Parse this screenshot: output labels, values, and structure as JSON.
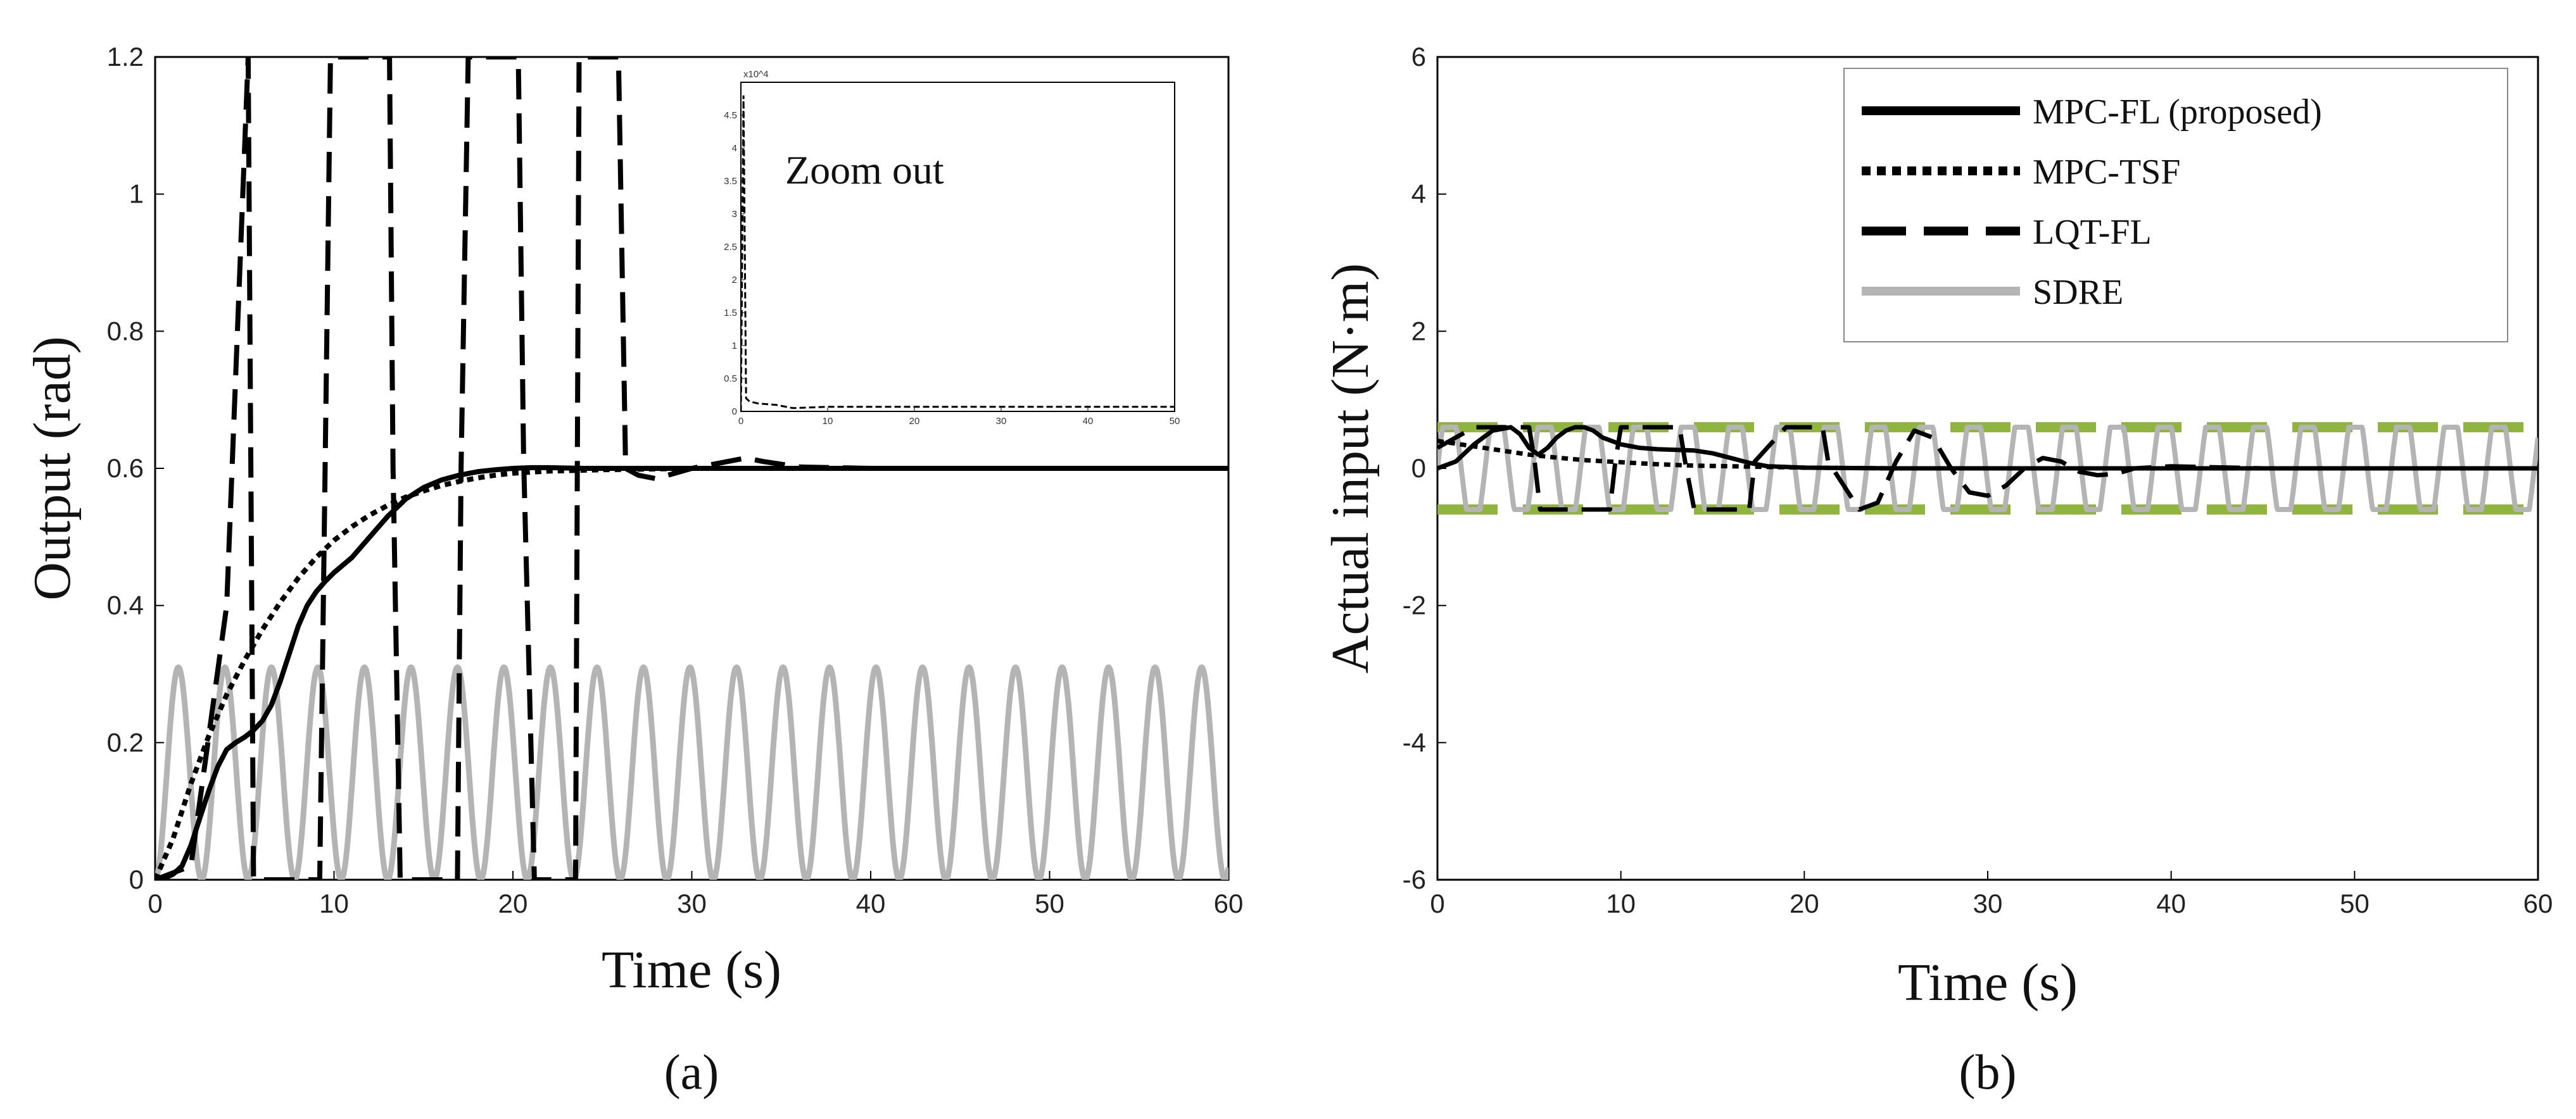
{
  "chart_data": [
    {
      "type": "line",
      "panel_label": "(a)",
      "xlabel": "Time (s)",
      "ylabel": "Output (rad)",
      "xlim": [
        0,
        60
      ],
      "ylim": [
        0,
        1.2
      ],
      "xticks": [
        0,
        10,
        20,
        30,
        40,
        50,
        60
      ],
      "yticks": [
        0,
        0.2,
        0.4,
        0.6,
        0.8,
        1.0,
        1.2
      ],
      "xtick_labels": [
        "0",
        "10",
        "20",
        "30",
        "40",
        "50",
        "60"
      ],
      "ytick_labels": [
        "0",
        "0.2",
        "0.4",
        "0.6",
        "0.8",
        "1",
        "1.2"
      ],
      "series": [
        {
          "name": "MPC-FL (proposed)",
          "style": "solid",
          "color": "#000000",
          "x": [
            0,
            0.5,
            1,
            1.5,
            2,
            2.5,
            3,
            3.5,
            4,
            4.5,
            5,
            5.5,
            6,
            6.5,
            7,
            7.5,
            8,
            8.5,
            9,
            9.5,
            10,
            11,
            12,
            13,
            14,
            15,
            16,
            17,
            18,
            19,
            20,
            21,
            22,
            24,
            27,
            30,
            40,
            50,
            60
          ],
          "y": [
            0,
            0.002,
            0.008,
            0.02,
            0.05,
            0.09,
            0.13,
            0.165,
            0.19,
            0.2,
            0.208,
            0.218,
            0.232,
            0.255,
            0.29,
            0.33,
            0.37,
            0.4,
            0.42,
            0.435,
            0.448,
            0.47,
            0.5,
            0.53,
            0.555,
            0.572,
            0.583,
            0.59,
            0.595,
            0.598,
            0.6,
            0.601,
            0.601,
            0.6,
            0.6,
            0.6,
            0.6,
            0.6,
            0.6
          ]
        },
        {
          "name": "MPC-TSF",
          "style": "dotted",
          "color": "#000000",
          "x": [
            0,
            1,
            2,
            3,
            4,
            5,
            6,
            7,
            8,
            9,
            10,
            11,
            12,
            13,
            14,
            15,
            16,
            17,
            18,
            19,
            20,
            22,
            25,
            30,
            40,
            50,
            60
          ],
          "y": [
            0,
            0.06,
            0.14,
            0.21,
            0.27,
            0.32,
            0.365,
            0.405,
            0.44,
            0.47,
            0.495,
            0.515,
            0.532,
            0.546,
            0.558,
            0.567,
            0.575,
            0.581,
            0.586,
            0.59,
            0.593,
            0.596,
            0.598,
            0.6,
            0.6,
            0.6,
            0.6
          ]
        },
        {
          "name": "LQT-FL",
          "style": "dashed",
          "color": "#000000",
          "x": [
            0,
            2,
            4,
            5.2,
            5.5,
            9.2,
            9.5,
            9.8,
            13.1,
            13.3,
            13.7,
            16.9,
            17.1,
            17.5,
            20.3,
            20.6,
            21.2,
            23.5,
            23.7,
            25.9,
            26.3,
            27,
            28,
            30,
            32,
            33,
            34,
            36,
            40,
            50,
            60
          ],
          "y": [
            0,
            0.02,
            0.4,
            1.2,
            0,
            0,
            0.6,
            1.2,
            1.2,
            0.6,
            0,
            0,
            0.6,
            1.2,
            1.2,
            0.61,
            0,
            0,
            1.2,
            1.2,
            0.6,
            0.59,
            0.585,
            0.6,
            0.61,
            0.615,
            0.61,
            0.602,
            0.6,
            0.6,
            0.6
          ]
        },
        {
          "name": "SDRE",
          "style": "solid",
          "color": "#b4b4b4",
          "form": "sinusoid",
          "amplitude": 0.155,
          "offset": 0.155,
          "period_s": 2.6,
          "x": [
            0,
            60
          ]
        }
      ],
      "inset": {
        "label": "Zoom out",
        "multiplier": "x10^4",
        "xlim": [
          0,
          50
        ],
        "ylim": [
          0,
          5
        ],
        "xticks": [
          0,
          10,
          20,
          30,
          40,
          50
        ],
        "yticks": [
          0,
          0.5,
          1,
          1.5,
          2,
          2.5,
          3,
          3.5,
          4,
          4.5
        ],
        "xtick_labels": [
          "0",
          "10",
          "20",
          "30",
          "40",
          "50"
        ],
        "ytick_labels": [
          "0",
          "0.5",
          "1",
          "1.5",
          "2",
          "2.5",
          "3",
          "3.5",
          "4",
          "4.5"
        ],
        "series": {
          "name": "LQT-FL",
          "style": "dashed",
          "x": [
            0,
            0.3,
            0.6,
            1,
            2,
            4,
            6,
            8,
            10,
            50
          ],
          "y": [
            0,
            4.8,
            0.2,
            0.15,
            0.12,
            0.1,
            0.05,
            0.06,
            0.07,
            0.07
          ]
        }
      }
    },
    {
      "type": "line",
      "panel_label": "(b)",
      "xlabel": "Time (s)",
      "ylabel": "Actual input (N·m)",
      "xlim": [
        0,
        60
      ],
      "ylim": [
        -6,
        6
      ],
      "xticks": [
        0,
        10,
        20,
        30,
        40,
        50,
        60
      ],
      "yticks": [
        -6,
        -4,
        -2,
        0,
        2,
        4,
        6
      ],
      "xtick_labels": [
        "0",
        "10",
        "20",
        "30",
        "40",
        "50",
        "60"
      ],
      "ytick_labels": [
        "-6",
        "-4",
        "-2",
        "0",
        "2",
        "4",
        "6"
      ],
      "constraint_lines": {
        "values": [
          0.6,
          -0.6
        ],
        "color": "#8fb53f",
        "style": "dashed"
      },
      "legend": {
        "position": "top-right",
        "entries": [
          "MPC-FL (proposed)",
          "MPC-TSF",
          "LQT-FL",
          "SDRE"
        ]
      },
      "series": [
        {
          "name": "MPC-FL (proposed)",
          "style": "solid",
          "color": "#000000",
          "x": [
            0,
            1,
            2,
            3,
            4,
            4.5,
            5,
            5.5,
            6,
            6.5,
            7,
            7.5,
            8,
            8.5,
            9,
            10,
            11,
            12,
            13,
            14,
            15,
            16,
            17,
            18,
            20,
            25,
            30,
            40,
            50,
            60
          ],
          "y": [
            0,
            0.1,
            0.35,
            0.55,
            0.6,
            0.5,
            0.3,
            0.2,
            0.3,
            0.45,
            0.55,
            0.6,
            0.6,
            0.55,
            0.45,
            0.35,
            0.3,
            0.28,
            0.27,
            0.26,
            0.22,
            0.15,
            0.08,
            0.03,
            0.01,
            0,
            0,
            0,
            0,
            0
          ]
        },
        {
          "name": "MPC-TSF",
          "style": "dotted",
          "color": "#000000",
          "x": [
            0,
            1,
            2,
            3,
            4,
            5,
            6,
            8,
            10,
            12,
            14,
            16,
            18,
            20,
            25,
            30,
            40,
            50,
            60
          ],
          "y": [
            0.4,
            0.36,
            0.32,
            0.28,
            0.24,
            0.2,
            0.17,
            0.12,
            0.09,
            0.06,
            0.04,
            0.03,
            0.02,
            0.01,
            0,
            0,
            0,
            0,
            0
          ]
        },
        {
          "name": "LQT-FL",
          "style": "dashed",
          "color": "#000000",
          "x": [
            0,
            1,
            2,
            3,
            4,
            5,
            5.3,
            5.6,
            6.5,
            8,
            9.4,
            9.7,
            10,
            12,
            13.2,
            13.5,
            14,
            16,
            17,
            17.3,
            19,
            21,
            21.3,
            23,
            24,
            25,
            26,
            27,
            28,
            29,
            30,
            31,
            32,
            33,
            34,
            35,
            36,
            37,
            38,
            40,
            45,
            50,
            60
          ],
          "y": [
            0.3,
            0.45,
            0.6,
            0.6,
            0.6,
            0.6,
            0.1,
            -0.6,
            -0.6,
            -0.6,
            -0.6,
            0.1,
            0.6,
            0.6,
            0.6,
            0.1,
            -0.6,
            -0.6,
            -0.6,
            0.1,
            0.6,
            0.6,
            0.1,
            -0.6,
            -0.5,
            0.1,
            0.55,
            0.45,
            0.0,
            -0.35,
            -0.4,
            -0.25,
            0.0,
            0.15,
            0.1,
            -0.05,
            -0.1,
            -0.08,
            0.0,
            0.03,
            0.0,
            0,
            0
          ]
        },
        {
          "name": "SDRE",
          "style": "solid",
          "color": "#b4b4b4",
          "form": "square-ish",
          "amplitude": 0.6,
          "period_s": 2.6,
          "x": [
            0,
            60
          ]
        }
      ]
    }
  ]
}
